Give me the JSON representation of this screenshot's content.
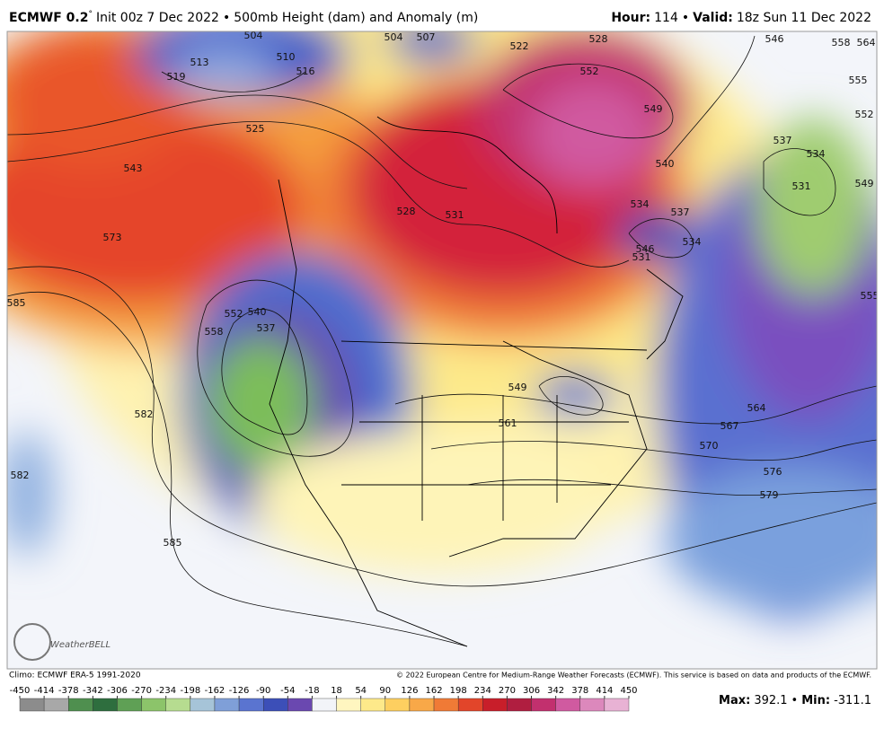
{
  "header": {
    "model": "ECMWF 0.2",
    "degree": "°",
    "init": "Init 00z 7 Dec 2022",
    "separator": "•",
    "title": "500mb Height (dam) and Anomaly (m)",
    "hour_label": "Hour:",
    "hour": 114,
    "valid_label": "Valid:",
    "valid": "18z Sun 11 Dec 2022"
  },
  "map": {
    "logo": "WeatherBELL",
    "contour_labels": [
      573,
      585,
      582,
      543,
      525,
      519,
      513,
      510,
      504,
      504,
      507,
      516,
      528,
      531,
      534,
      537,
      540,
      549,
      552,
      522,
      546,
      558,
      564,
      555,
      552,
      537,
      534,
      531,
      549,
      555,
      564,
      567,
      570,
      576,
      579,
      585,
      582,
      558,
      552,
      540,
      537,
      549,
      561,
      546,
      534,
      531,
      528
    ]
  },
  "footer": {
    "climo": "Climo: ECMWF ERA-5 1991-2020",
    "copyright": "© 2022 European Centre for Medium-Range Weather Forecasts (ECMWF). This service is based on data and products of the ECMWF.",
    "max_label": "Max",
    "max": 392.1,
    "separator": "•",
    "min_label": "Min",
    "min": -311.1
  },
  "colorbar": {
    "ticks": [
      -450,
      -414,
      -378,
      -342,
      -306,
      -270,
      -234,
      -198,
      -162,
      -126,
      -90,
      -54,
      -18,
      18,
      54,
      90,
      126,
      162,
      198,
      234,
      270,
      306,
      342,
      378,
      414,
      450
    ],
    "colors": [
      "#8c8c8c",
      "#a8a8a8",
      "#4f8f4f",
      "#2e6e3e",
      "#5fa055",
      "#8cc46a",
      "#b6dc90",
      "#a6c4d8",
      "#7f9fd8",
      "#5a74d0",
      "#3c4fb8",
      "#6a48b0",
      "#f2f4f8",
      "#fff6c0",
      "#fde98a",
      "#fdcf60",
      "#f8a848",
      "#f07a36",
      "#e2452a",
      "#c81e2a",
      "#b01e40",
      "#c2306e",
      "#d05aa0",
      "#dc88bc",
      "#e8b2d4"
    ]
  }
}
